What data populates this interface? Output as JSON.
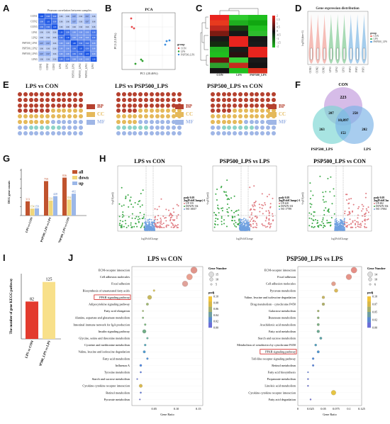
{
  "letters": {
    "a": "A",
    "b": "B",
    "c": "C",
    "d": "D",
    "e": "E",
    "f": "F",
    "g": "G",
    "h": "H",
    "i": "I",
    "j": "J"
  },
  "A": {
    "title": "Pearson correlation between samples",
    "rows": [
      "CON1",
      "CON2",
      "CON3",
      "LPS1",
      "LPS2",
      "PSP500_LPS1",
      "PSP500_LPS2",
      "PSP500_LPS3",
      "LPS3"
    ],
    "matrix": [
      [
        1,
        0.99,
        0.99,
        0.96,
        0.96,
        0.97,
        0.96,
        0.97,
        0.96
      ],
      [
        0.99,
        1,
        0.99,
        0.96,
        0.96,
        0.97,
        0.96,
        0.97,
        0.96
      ],
      [
        0.99,
        0.99,
        1,
        0.96,
        0.96,
        0.96,
        0.96,
        0.96,
        0.96
      ],
      [
        0.96,
        0.96,
        0.96,
        1,
        0.99,
        0.98,
        0.98,
        0.98,
        0.99
      ],
      [
        0.96,
        0.96,
        0.96,
        0.99,
        1,
        0.98,
        0.98,
        0.98,
        0.99
      ],
      [
        0.97,
        0.97,
        0.96,
        0.98,
        0.98,
        1,
        0.99,
        0.99,
        0.98
      ],
      [
        0.96,
        0.96,
        0.96,
        0.98,
        0.98,
        0.99,
        1,
        0.99,
        0.98
      ],
      [
        0.97,
        0.97,
        0.96,
        0.98,
        0.98,
        0.99,
        0.99,
        1,
        0.98
      ],
      [
        0.96,
        0.96,
        0.96,
        0.99,
        0.99,
        0.98,
        0.98,
        0.98,
        1
      ]
    ]
  },
  "B": {
    "title": "PCA",
    "xlabel": "PC1 (20.46%)",
    "ylabel": "PC2 (12.8%)",
    "legend_title": "group",
    "legend": [
      {
        "name": "CON",
        "color": "#e8474a"
      },
      {
        "name": "LPS",
        "color": "#2ca02c"
      },
      {
        "name": "PSP500_LPS",
        "color": "#3b8ede"
      }
    ]
  },
  "C": {
    "labels": [
      "CON",
      "LPS",
      "PSP500_LPS"
    ],
    "scale": [
      "2",
      "1.5",
      "1",
      "0.5",
      "0",
      "-0.5",
      "-1",
      "-1.5",
      "-2"
    ]
  },
  "D": {
    "title": "Gene expression distribution",
    "ylabel": "log10(fpkm+1)",
    "samples": [
      "CON1",
      "CON2",
      "CON3",
      "LPS1",
      "LPS2",
      "LPS3",
      "PSP1",
      "PSP2",
      "PSP3"
    ],
    "legend_title": "group",
    "legend": [
      "CON",
      "LPS",
      "PSP500_LPS"
    ]
  },
  "E": {
    "titles": [
      "LPS vs CON",
      "LPS vs PSP500_LPS",
      "PSP500_LPS vs CON"
    ],
    "legend": [
      {
        "name": "BP",
        "color": "#b5412f"
      },
      {
        "name": "CC",
        "color": "#e5b95a"
      },
      {
        "name": "MF",
        "color": "#9fb6e6"
      }
    ]
  },
  "F": {
    "labels": {
      "con": "CON",
      "psp": "PSP500_LPS",
      "lps": "LPS"
    },
    "counts": {
      "con_only": "223",
      "con_psp": "207",
      "con_lps": "250",
      "center": "10,897",
      "psp_only": "263",
      "psp_lps": "152",
      "lps_only": "202"
    }
  },
  "G": {
    "ylabel": "DEG gene counts",
    "legend": [
      {
        "name": "all",
        "color": "#c0532e"
      },
      {
        "name": "down",
        "color": "#f0d67a"
      },
      {
        "name": "up",
        "color": "#9bb7e8"
      }
    ],
    "chart_data": {
      "type": "bar",
      "categories": [
        "LPS vs CON",
        "PSP500_LPS vs LPS",
        "PSP500_LPS vs CON"
      ],
      "series": [
        {
          "name": "all",
          "values": [
            313,
            759,
            836
          ]
        },
        {
          "name": "down",
          "values": [
            154,
            331,
            354
          ]
        },
        {
          "name": "up",
          "values": [
            159,
            428,
            482
          ]
        }
      ],
      "ylabel": "DEG gene counts",
      "ylim": [
        0,
        1000
      ]
    },
    "labels": [
      "313",
      "154",
      "159",
      "759",
      "331",
      "428",
      "836",
      "354",
      "482"
    ]
  },
  "H": {
    "titles": [
      "LPS vs CON",
      "PSP500_LPS vs LPS",
      "PSP500_LPS vs CON"
    ],
    "xlabel": "log2FoldChange",
    "ylabel": "-log10(padj)",
    "legends": [
      [
        "padj<0.05",
        "|log2FoldChange|>1",
        "UP 159",
        "DOWN 154",
        "NO 18357"
      ],
      [
        "padj<0.05",
        "|log2FoldChange|>1",
        "UP 428",
        "DOWN 331",
        "NO 17789"
      ],
      [
        "padj<0.05",
        "|log2FoldChange|>1",
        "UP 482",
        "DOWN 354",
        "NO 17694"
      ]
    ]
  },
  "I": {
    "ylabel": "The number of gene KEGG pathway",
    "chart_data": {
      "type": "bar",
      "categories": [
        "LPS vs CON",
        "PSP500_LPS vs LPS"
      ],
      "values": [
        82,
        125
      ],
      "colors": [
        "#e33b2e",
        "#f8e08a"
      ]
    },
    "labels": [
      "82",
      "125"
    ]
  },
  "J": {
    "left": {
      "title": "LPS vs CON",
      "xlabel": "Gene Ratio",
      "ticks": [
        "0.05",
        "0.10",
        "0.15"
      ],
      "legend_title1": "Gene Number",
      "legend_title2": "padj",
      "legend_sizes": [
        "15",
        "10",
        "5"
      ],
      "legend_colors": [
        "0.10",
        "0.08",
        "0.06",
        "0.04",
        "0.02",
        "0.00"
      ],
      "terms": [
        "ECM-receptor interaction",
        "Cell adhesion molecules",
        "Focal adhesion",
        "Biosynthesis of unsaturated fatty acids",
        "PPAR signaling pathway",
        "Adipocytokine signaling pathway",
        "Fatty acid elongation",
        "Alanine, aspartate and glutamate metabolism",
        "Intestinal immune network for IgA production",
        "Insulin signaling pathway",
        "Glycine, serine and threonine metabolism",
        "Cysteine and methionine metabolism",
        "Valine, leucine and isoleucine degradation",
        "Fatty acid metabolism",
        "Influenza A",
        "Tyrosine metabolism",
        "Starch and sucrose metabolism",
        "Cytokine-cytokine receptor interaction",
        "Retinol metabolism",
        "Pyruvate metabolism"
      ],
      "highlight_index": 4
    },
    "right": {
      "title": "PSP500_LPS vs LPS",
      "xlabel": "Gene Ratio",
      "ticks": [
        "0",
        "0.025",
        "0.05",
        "0.075",
        "0.1",
        "0.125"
      ],
      "legend_title1": "Gene Number",
      "legend_title2": "padj",
      "legend_sizes": [
        "14",
        "10",
        "6"
      ],
      "legend_colors": [
        "0.10",
        "0.07",
        "0.05",
        "0.02",
        "0.00"
      ],
      "terms": [
        "ECM-receptor interaction",
        "Focal adhesion",
        "Cell adhesion molecules",
        "Pyruvate metabolism",
        "Valine, leucine and isoleucine degradation",
        "Drug metabolism - cytochrome P450",
        "Galactose metabolism",
        "Butanoate metabolism",
        "Arachidonic acid metabolism",
        "Fatty acid metabolism",
        "Starch and sucrose metabolism",
        "Metabolism of xenobiotics by cytochrome P450",
        "PPAR signaling pathway",
        "Toll-like receptor signaling pathway",
        "Retinol metabolism",
        "Fatty acid biosynthesis",
        "Propanoate metabolism",
        "Linoleic acid metabolism",
        "Cytokine-cytokine receptor interaction",
        "Fatty acid degradation"
      ],
      "highlight_index": 12
    }
  }
}
